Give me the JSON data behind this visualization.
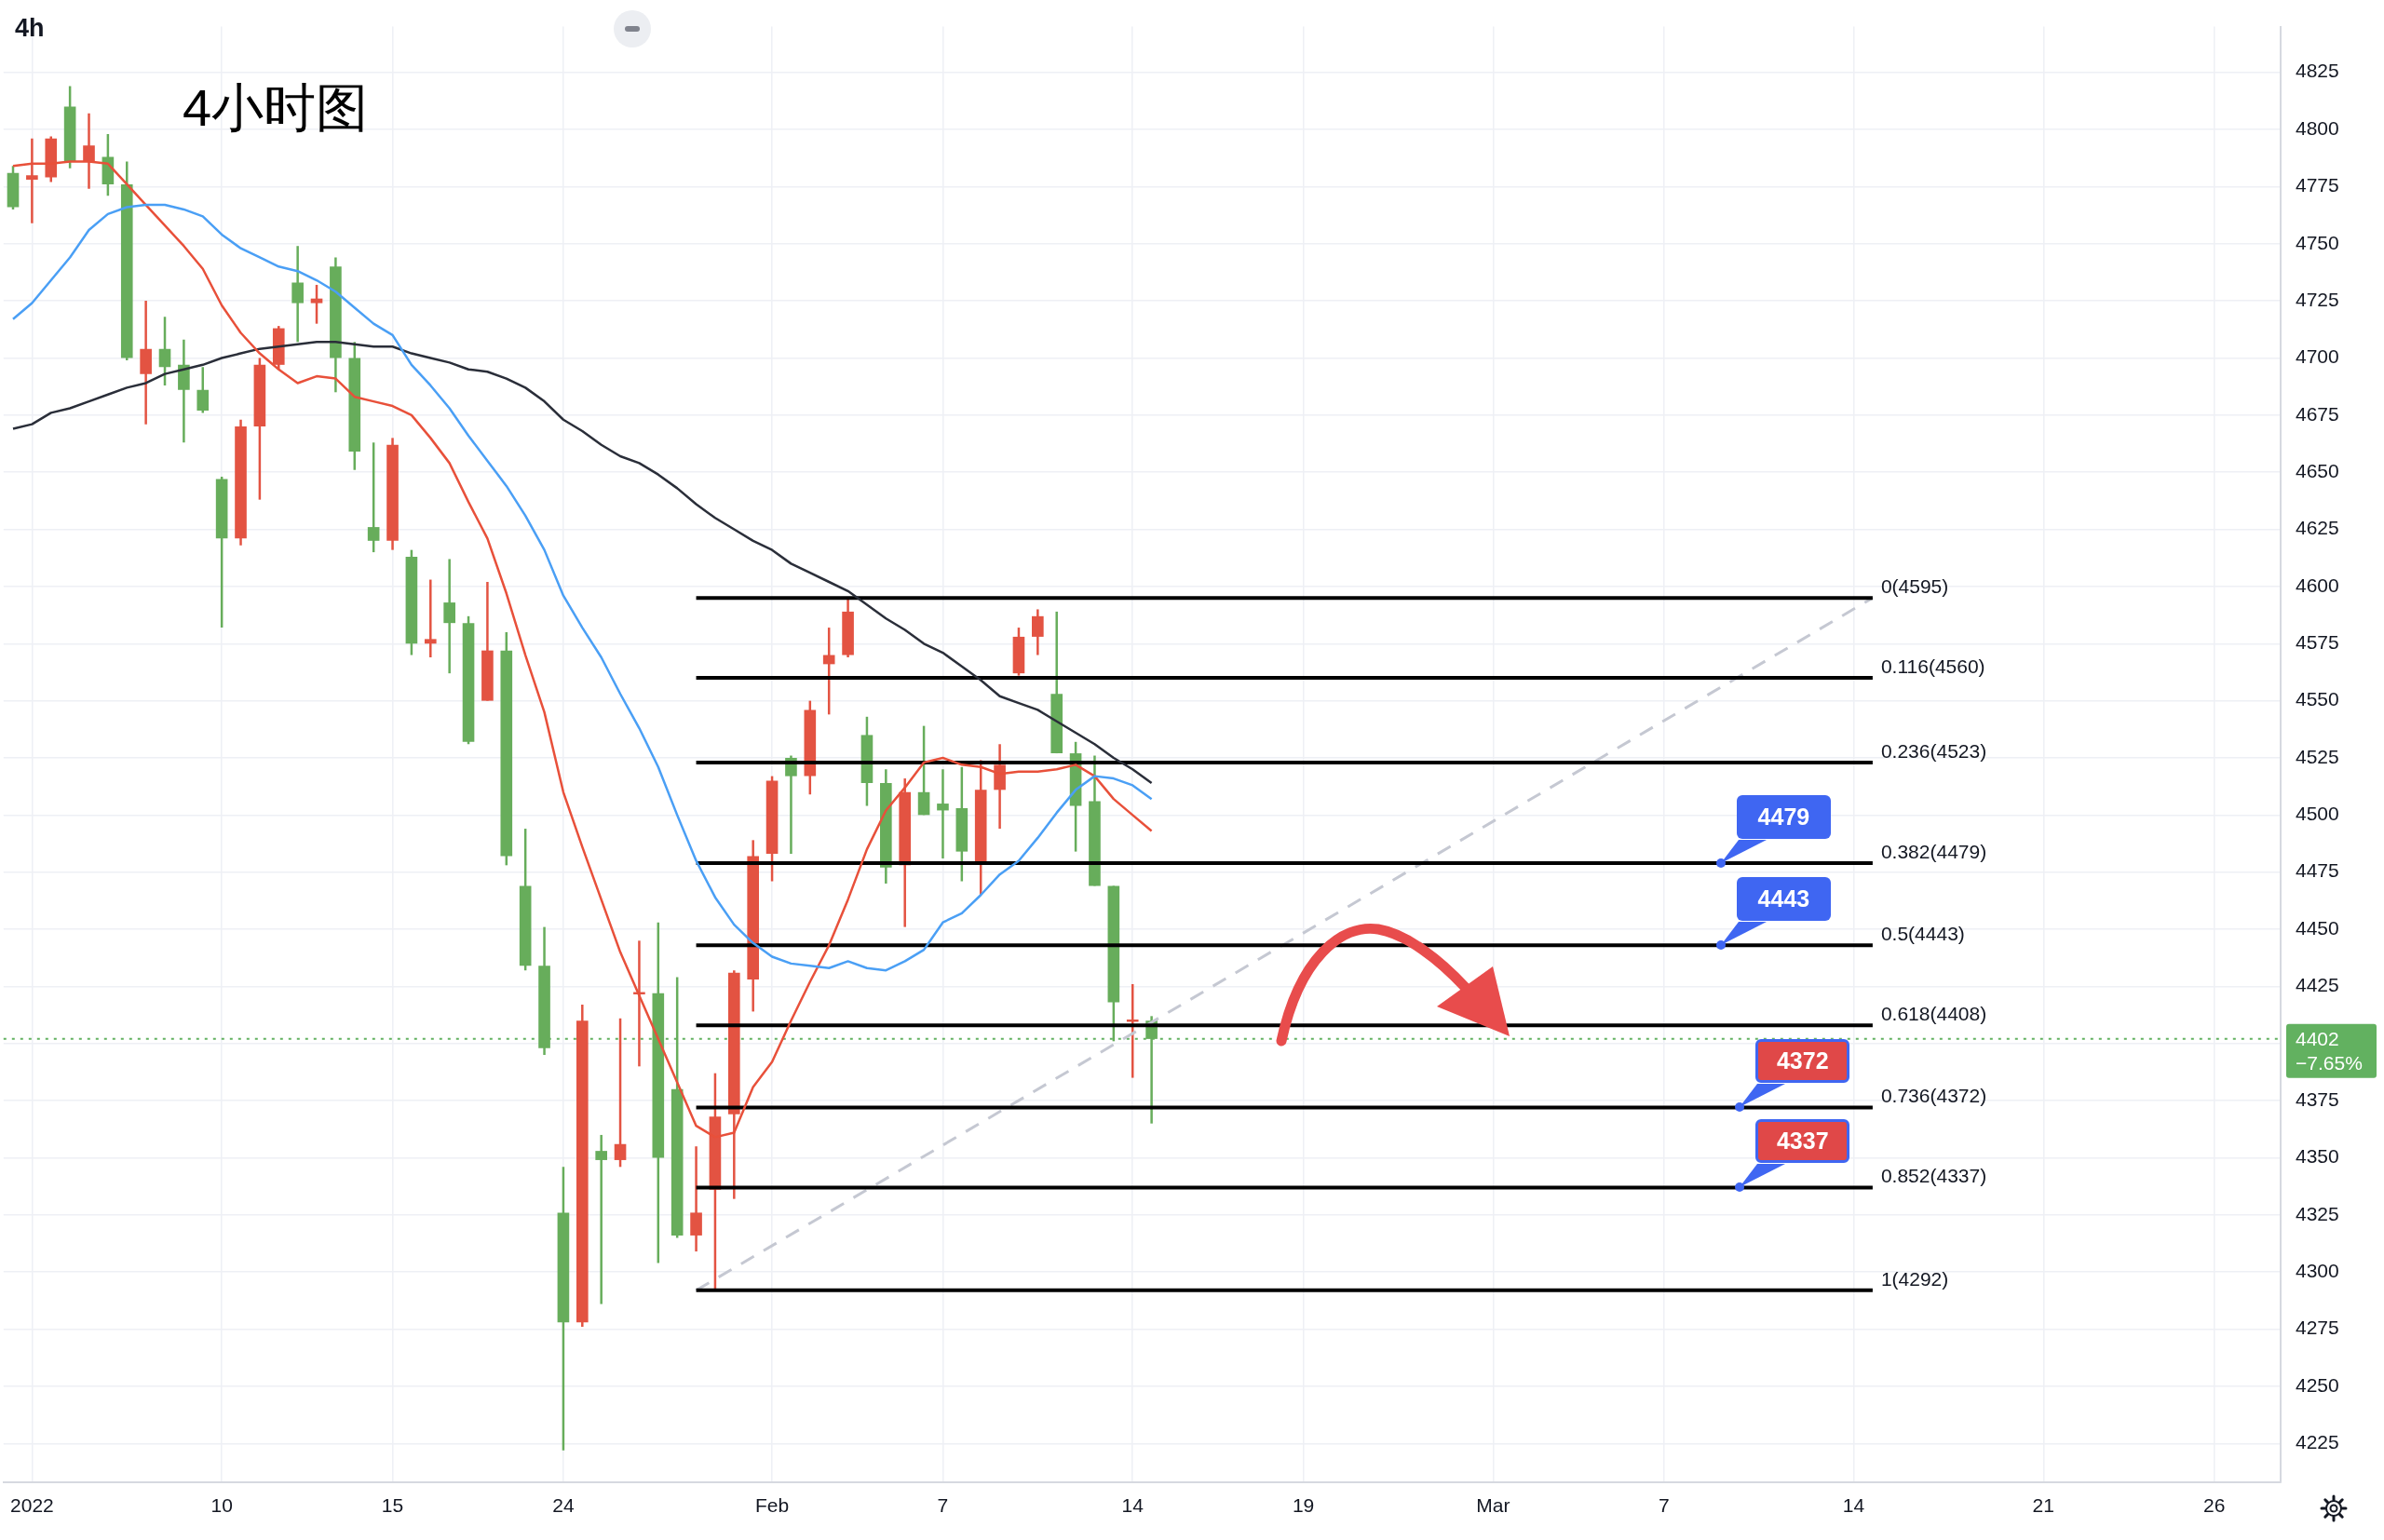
{
  "chart_data": {
    "type": "candlestick",
    "title": "4小时图",
    "subtitle": "4h",
    "categories": [
      null,
      "2022",
      null,
      null,
      null,
      null,
      null,
      null,
      null,
      null,
      null,
      "10",
      null,
      null,
      null,
      null,
      null,
      null,
      null,
      null,
      "15",
      null,
      null,
      null,
      null,
      null,
      null,
      null,
      null,
      "24",
      null,
      null,
      null,
      null,
      null,
      null,
      null,
      null,
      null,
      null,
      "Feb",
      null,
      null,
      null,
      null,
      null,
      null,
      null,
      null,
      "7",
      null,
      null,
      null,
      null,
      null,
      null,
      null,
      null,
      null,
      "14",
      null,
      null,
      null,
      null,
      null,
      null,
      null,
      null,
      "19",
      null,
      null,
      null,
      null,
      null,
      null,
      null,
      null,
      null,
      "Mar",
      null,
      null,
      null,
      null,
      null,
      null,
      null,
      null,
      "7",
      null,
      null,
      null,
      null,
      null,
      null,
      null,
      null,
      null,
      "14",
      null,
      null,
      null,
      null,
      null,
      null,
      null,
      null,
      null,
      "21",
      null,
      null,
      null,
      null,
      null,
      null,
      null,
      null,
      "26",
      null,
      null,
      null
    ],
    "ohlc": [
      [
        4781,
        4784,
        4765,
        4766
      ],
      [
        4778,
        4796,
        4759,
        4780
      ],
      [
        4779,
        4797,
        4777,
        4796
      ],
      [
        4810,
        4819,
        4783,
        4786
      ],
      [
        4786,
        4807,
        4774,
        4793
      ],
      [
        4788,
        4798,
        4771,
        4776
      ],
      [
        4776,
        4786,
        4699,
        4700
      ],
      [
        4693,
        4725,
        4671,
        4704
      ],
      [
        4704,
        4718,
        4688,
        4696
      ],
      [
        4697,
        4708,
        4663,
        4686
      ],
      [
        4686,
        4696,
        4676,
        4677
      ],
      [
        4647,
        4648,
        4582,
        4621
      ],
      [
        4621,
        4673,
        4618,
        4670
      ],
      [
        4670,
        4700,
        4638,
        4697
      ],
      [
        4697,
        4714,
        4695,
        4713
      ],
      [
        4733,
        4749,
        4707,
        4724
      ],
      [
        4724,
        4732,
        4715,
        4726
      ],
      [
        4740,
        4744,
        4685,
        4700
      ],
      [
        4700,
        4707,
        4651,
        4659
      ],
      [
        4626,
        4663,
        4615,
        4620
      ],
      [
        4620,
        4665,
        4616,
        4662
      ],
      [
        4613,
        4616,
        4570,
        4575
      ],
      [
        4575,
        4603,
        4569,
        4577
      ],
      [
        4593,
        4612,
        4562,
        4584
      ],
      [
        4584,
        4587,
        4531,
        4532
      ],
      [
        4550,
        4602,
        4550,
        4572
      ],
      [
        4572,
        4580,
        4478,
        4482
      ],
      [
        4469,
        4494,
        4432,
        4434
      ],
      [
        4434,
        4451,
        4395,
        4398
      ],
      [
        4326,
        4346,
        4222,
        4278
      ],
      [
        4278,
        4417,
        4276,
        4410
      ],
      [
        4353,
        4360,
        4286,
        4349
      ],
      [
        4349,
        4411,
        4346,
        4356
      ],
      [
        4421,
        4445,
        4390,
        4422
      ],
      [
        4422,
        4453,
        4304,
        4350
      ],
      [
        4380,
        4429,
        4315,
        4316
      ],
      [
        4316,
        4355,
        4309,
        4326
      ],
      [
        4336,
        4387,
        4292,
        4368
      ],
      [
        4369,
        4432,
        4332,
        4431
      ],
      [
        4428,
        4489,
        4414,
        4482
      ],
      [
        4483,
        4517,
        4471,
        4515
      ],
      [
        4525,
        4526,
        4483,
        4517
      ],
      [
        4517,
        4550,
        4509,
        4546
      ],
      [
        4566,
        4582,
        4544,
        4570
      ],
      [
        4570,
        4595,
        4569,
        4589
      ],
      [
        4535,
        4543,
        4504,
        4514
      ],
      [
        4514,
        4520,
        4470,
        4477
      ],
      [
        4478,
        4516,
        4451,
        4510
      ],
      [
        4510,
        4539,
        4500,
        4500
      ],
      [
        4505,
        4520,
        4481,
        4502
      ],
      [
        4503,
        4521,
        4471,
        4484
      ],
      [
        4479,
        4524,
        4465,
        4511
      ],
      [
        4511,
        4531,
        4494,
        4522
      ],
      [
        4562,
        4582,
        4561,
        4578
      ],
      [
        4578,
        4590,
        4570,
        4587
      ],
      [
        4553,
        4589,
        4527,
        4527
      ],
      [
        4527,
        4532,
        4484,
        4504
      ],
      [
        4506,
        4526,
        4469,
        4469
      ],
      [
        4469,
        4469,
        4401,
        4418
      ],
      [
        4409,
        4426,
        4385,
        4410
      ],
      [
        4410,
        4412,
        4365,
        4402
      ],
      null,
      null,
      null,
      null,
      null,
      null,
      null,
      null,
      null,
      null,
      null,
      null,
      null,
      null,
      null,
      null,
      null,
      null,
      null,
      null,
      null,
      null,
      null,
      null,
      null,
      null,
      null,
      null,
      null,
      null,
      null,
      null,
      null,
      null,
      null,
      null,
      null,
      null,
      null,
      null,
      null,
      null,
      null,
      null,
      null,
      null,
      null,
      null,
      null,
      null,
      null,
      null,
      null,
      null,
      null,
      null,
      null,
      null,
      null
    ],
    "colors": [
      "#67ad5b",
      "#e35342",
      "#e35342",
      "#67ad5b",
      "#e35342",
      "#67ad5b",
      "#67ad5b",
      "#e35342",
      "#67ad5b",
      "#67ad5b",
      "#67ad5b",
      "#67ad5b",
      "#e35342",
      "#e35342",
      "#e35342",
      "#67ad5b",
      "#e35342",
      "#67ad5b",
      "#67ad5b",
      "#67ad5b",
      "#e35342",
      "#67ad5b",
      "#e35342",
      "#67ad5b",
      "#67ad5b",
      "#e35342",
      "#67ad5b",
      "#67ad5b",
      "#67ad5b",
      "#67ad5b",
      "#e35342",
      "#67ad5b",
      "#e35342",
      "#e35342",
      "#67ad5b",
      "#67ad5b",
      "#e35342",
      "#e35342",
      "#e35342",
      "#e35342",
      "#e35342",
      "#67ad5b",
      "#e35342",
      "#e35342",
      "#e35342",
      "#67ad5b",
      "#67ad5b",
      "#e35342",
      "#67ad5b",
      "#67ad5b",
      "#67ad5b",
      "#e35342",
      "#e35342",
      "#e35342",
      "#e35342",
      "#67ad5b",
      "#67ad5b",
      "#67ad5b",
      "#67ad5b",
      "#e35342",
      "#67ad5b",
      null,
      null,
      null,
      null,
      null,
      null,
      null,
      null,
      null,
      null,
      null,
      null,
      null,
      null,
      null,
      null,
      null,
      null,
      null,
      null,
      null,
      null,
      null,
      null,
      null,
      null,
      null,
      null,
      null,
      null,
      null,
      null,
      null,
      null,
      null,
      null,
      null,
      null,
      null,
      null,
      null,
      null,
      null,
      null,
      null,
      null,
      null,
      null,
      null,
      null,
      null,
      null,
      null,
      null,
      null,
      null,
      null,
      null,
      null
    ],
    "series": [
      {
        "type": "line",
        "color": "#4a9ff5",
        "values": [
          4717,
          4724,
          4734,
          4744,
          4756,
          4763,
          4766,
          4767,
          4767,
          4765,
          4762,
          4754,
          4748,
          4744,
          4740,
          4738,
          4734,
          4729,
          4722,
          4715,
          4710,
          4697,
          4688,
          4678,
          4666,
          4655,
          4644,
          4631,
          4616,
          4596,
          4582,
          4569,
          4553,
          4538,
          4521,
          4500,
          4480,
          4464,
          4452,
          4444,
          4438,
          4435,
          4434,
          4433,
          4436,
          4433,
          4432,
          4436,
          4441,
          4453,
          4457,
          4465,
          4474,
          4480,
          4490,
          4501,
          4511,
          4517,
          4516,
          4513,
          4507,
          null,
          null,
          null,
          null,
          null,
          null,
          null,
          null,
          null,
          null,
          null,
          null,
          null,
          null,
          null,
          null,
          null,
          null,
          null,
          null,
          null,
          null,
          null,
          null,
          null,
          null,
          null,
          null,
          null,
          null,
          null,
          null,
          null,
          null,
          null,
          null,
          null,
          null,
          null,
          null,
          null,
          null,
          null,
          null,
          null,
          null,
          null,
          null,
          null,
          null,
          null,
          null,
          null,
          null,
          null,
          null,
          null,
          null,
          null
        ]
      },
      {
        "type": "line",
        "color": "#e8503a",
        "values": [
          4784,
          4785,
          4785,
          4786,
          4786,
          4785,
          4776,
          4767,
          4758,
          4749,
          4739,
          4723,
          4711,
          4702,
          4695,
          4689,
          4692,
          4691,
          4683,
          4681,
          4679,
          4675,
          4665,
          4654,
          4637,
          4621,
          4597,
          4570,
          4545,
          4510,
          4486,
          4463,
          4440,
          4421,
          4402,
          4383,
          4364,
          4359,
          4361,
          4381,
          4392,
          4410,
          4427,
          4443,
          4463,
          4485,
          4502,
          4512,
          4523,
          4525,
          4522,
          4521,
          4518,
          4519,
          4519,
          4520,
          4522,
          4517,
          4507,
          4500,
          4493,
          null,
          null,
          null,
          null,
          null,
          null,
          null,
          null,
          null,
          null,
          null,
          null,
          null,
          null,
          null,
          null,
          null,
          null,
          null,
          null,
          null,
          null,
          null,
          null,
          null,
          null,
          null,
          null,
          null,
          null,
          null,
          null,
          null,
          null,
          null,
          null,
          null,
          null,
          null,
          null,
          null,
          null,
          null,
          null,
          null,
          null,
          null,
          null,
          null,
          null,
          null,
          null,
          null,
          null,
          null,
          null,
          null,
          null,
          null
        ]
      },
      {
        "type": "line",
        "color": "#2a2e39",
        "values": [
          4669,
          4671,
          4676,
          4678,
          4681,
          4684,
          4687,
          4689,
          4693,
          4695,
          4697,
          4700,
          4702,
          4704,
          4705,
          4706,
          4707,
          4707,
          4706,
          4705,
          4705,
          4702,
          4700,
          4698,
          4695,
          4694,
          4691,
          4687,
          4681,
          4673,
          4668,
          4662,
          4657,
          4654,
          4649,
          4643,
          4636,
          4630,
          4625,
          4620,
          4616,
          4610,
          4606,
          4602,
          4598,
          4592,
          4586,
          4581,
          4575,
          4571,
          4565,
          4559,
          4552,
          4549,
          4546,
          4541,
          4536,
          4531,
          4525,
          4520,
          4514,
          null,
          null,
          null,
          null,
          null,
          null,
          null,
          null,
          null,
          null,
          null,
          null,
          null,
          null,
          null,
          null,
          null,
          null,
          null,
          null,
          null,
          null,
          null,
          null,
          null,
          null,
          null,
          null,
          null,
          null,
          null,
          null,
          null,
          null,
          null,
          null,
          null,
          null,
          null,
          null,
          null,
          null,
          null,
          null,
          null,
          null,
          null,
          null,
          null,
          null,
          null,
          null,
          null,
          null,
          null,
          null,
          null,
          null,
          null
        ]
      },
      {
        "type": "line",
        "name": "0(4595)",
        "color": "#000000",
        "values": [
          null,
          null,
          null,
          null,
          null,
          null,
          null,
          null,
          null,
          null,
          null,
          null,
          null,
          null,
          null,
          null,
          null,
          null,
          null,
          null,
          null,
          null,
          null,
          null,
          null,
          null,
          null,
          null,
          null,
          null,
          null,
          null,
          null,
          null,
          null,
          null,
          4595,
          null,
          null,
          null,
          null,
          null,
          null,
          null,
          null,
          null,
          null,
          null,
          null,
          null,
          null,
          null,
          null,
          null,
          null,
          null,
          null,
          null,
          null,
          null,
          null,
          null,
          null,
          null,
          null,
          null,
          null,
          null,
          null,
          null,
          null,
          null,
          null,
          null,
          null,
          null,
          null,
          null,
          null,
          null,
          null,
          null,
          null,
          null,
          null,
          null,
          null,
          null,
          null,
          null,
          null,
          null,
          null,
          null,
          null,
          null,
          null,
          null,
          4595,
          null,
          null,
          null,
          null,
          null,
          null,
          null,
          null,
          null,
          null,
          null,
          null,
          null,
          null,
          null,
          null,
          null,
          null,
          null,
          null,
          null
        ]
      },
      {
        "type": "line",
        "name": "0.116(4560)",
        "color": "#000000",
        "values": [
          null,
          null,
          null,
          null,
          null,
          null,
          null,
          null,
          null,
          null,
          null,
          null,
          null,
          null,
          null,
          null,
          null,
          null,
          null,
          null,
          null,
          null,
          null,
          null,
          null,
          null,
          null,
          null,
          null,
          null,
          null,
          null,
          null,
          null,
          null,
          null,
          4560,
          null,
          null,
          null,
          null,
          null,
          null,
          null,
          null,
          null,
          null,
          null,
          null,
          null,
          null,
          null,
          null,
          null,
          null,
          null,
          null,
          null,
          null,
          null,
          null,
          null,
          null,
          null,
          null,
          null,
          null,
          null,
          null,
          null,
          null,
          null,
          null,
          null,
          null,
          null,
          null,
          null,
          null,
          null,
          null,
          null,
          null,
          null,
          null,
          null,
          null,
          null,
          null,
          null,
          null,
          null,
          null,
          null,
          null,
          null,
          null,
          null,
          4560,
          null,
          null,
          null,
          null,
          null,
          null,
          null,
          null,
          null,
          null,
          null,
          null,
          null,
          null,
          null,
          null,
          null,
          null,
          null,
          null,
          null
        ]
      },
      {
        "type": "line",
        "name": "0.236(4523)",
        "color": "#000000",
        "values": [
          null,
          null,
          null,
          null,
          null,
          null,
          null,
          null,
          null,
          null,
          null,
          null,
          null,
          null,
          null,
          null,
          null,
          null,
          null,
          null,
          null,
          null,
          null,
          null,
          null,
          null,
          null,
          null,
          null,
          null,
          null,
          null,
          null,
          null,
          null,
          null,
          4523,
          null,
          null,
          null,
          null,
          null,
          null,
          null,
          null,
          null,
          null,
          null,
          null,
          null,
          null,
          null,
          null,
          null,
          null,
          null,
          null,
          null,
          null,
          null,
          null,
          null,
          null,
          null,
          null,
          null,
          null,
          null,
          null,
          null,
          null,
          null,
          null,
          null,
          null,
          null,
          null,
          null,
          null,
          null,
          null,
          null,
          null,
          null,
          null,
          null,
          null,
          null,
          null,
          null,
          null,
          null,
          null,
          null,
          null,
          null,
          null,
          null,
          4523,
          null,
          null,
          null,
          null,
          null,
          null,
          null,
          null,
          null,
          null,
          null,
          null,
          null,
          null,
          null,
          null,
          null,
          null,
          null,
          null,
          null
        ]
      },
      {
        "type": "line",
        "name": "0.382(4479)",
        "color": "#000000",
        "values": [
          null,
          null,
          null,
          null,
          null,
          null,
          null,
          null,
          null,
          null,
          null,
          null,
          null,
          null,
          null,
          null,
          null,
          null,
          null,
          null,
          null,
          null,
          null,
          null,
          null,
          null,
          null,
          null,
          null,
          null,
          null,
          null,
          null,
          null,
          null,
          null,
          4479,
          null,
          null,
          null,
          null,
          null,
          null,
          null,
          null,
          null,
          null,
          null,
          null,
          null,
          null,
          null,
          null,
          null,
          null,
          null,
          null,
          null,
          null,
          null,
          null,
          null,
          null,
          null,
          null,
          null,
          null,
          null,
          null,
          null,
          null,
          null,
          null,
          null,
          null,
          null,
          null,
          null,
          null,
          null,
          null,
          null,
          null,
          null,
          null,
          null,
          null,
          null,
          null,
          null,
          null,
          null,
          null,
          null,
          null,
          null,
          null,
          null,
          4479,
          null,
          null,
          null,
          null,
          null,
          null,
          null,
          null,
          null,
          null,
          null,
          null,
          null,
          null,
          null,
          null,
          null,
          null,
          null,
          null,
          null
        ]
      },
      {
        "type": "line",
        "name": "0.5(4443)",
        "color": "#000000",
        "values": [
          null,
          null,
          null,
          null,
          null,
          null,
          null,
          null,
          null,
          null,
          null,
          null,
          null,
          null,
          null,
          null,
          null,
          null,
          null,
          null,
          null,
          null,
          null,
          null,
          null,
          null,
          null,
          null,
          null,
          null,
          null,
          null,
          null,
          null,
          null,
          null,
          4443,
          null,
          null,
          null,
          null,
          null,
          null,
          null,
          null,
          null,
          null,
          null,
          null,
          null,
          null,
          null,
          null,
          null,
          null,
          null,
          null,
          null,
          null,
          null,
          null,
          null,
          null,
          null,
          null,
          null,
          null,
          null,
          null,
          null,
          null,
          null,
          null,
          null,
          null,
          null,
          null,
          null,
          null,
          null,
          null,
          null,
          null,
          null,
          null,
          null,
          null,
          null,
          null,
          null,
          null,
          null,
          null,
          null,
          null,
          null,
          null,
          null,
          4443,
          null,
          null,
          null,
          null,
          null,
          null,
          null,
          null,
          null,
          null,
          null,
          null,
          null,
          null,
          null,
          null,
          null,
          null,
          null,
          null,
          null
        ]
      },
      {
        "type": "line",
        "name": "0.618(4408)",
        "color": "#000000",
        "values": [
          null,
          null,
          null,
          null,
          null,
          null,
          null,
          null,
          null,
          null,
          null,
          null,
          null,
          null,
          null,
          null,
          null,
          null,
          null,
          null,
          null,
          null,
          null,
          null,
          null,
          null,
          null,
          null,
          null,
          null,
          null,
          null,
          null,
          null,
          null,
          null,
          4408,
          null,
          null,
          null,
          null,
          null,
          null,
          null,
          null,
          null,
          null,
          null,
          null,
          null,
          null,
          null,
          null,
          null,
          null,
          null,
          null,
          null,
          null,
          null,
          null,
          null,
          null,
          null,
          null,
          null,
          null,
          null,
          null,
          null,
          null,
          null,
          null,
          null,
          null,
          null,
          null,
          null,
          null,
          null,
          null,
          null,
          null,
          null,
          null,
          null,
          null,
          null,
          null,
          null,
          null,
          null,
          null,
          null,
          null,
          null,
          null,
          null,
          4408,
          null,
          null,
          null,
          null,
          null,
          null,
          null,
          null,
          null,
          null,
          null,
          null,
          null,
          null,
          null,
          null,
          null,
          null,
          null,
          null,
          null
        ]
      },
      {
        "type": "line",
        "name": "0.736(4372)",
        "color": "#000000",
        "values": [
          null,
          null,
          null,
          null,
          null,
          null,
          null,
          null,
          null,
          null,
          null,
          null,
          null,
          null,
          null,
          null,
          null,
          null,
          null,
          null,
          null,
          null,
          null,
          null,
          null,
          null,
          null,
          null,
          null,
          null,
          null,
          null,
          null,
          null,
          null,
          null,
          4372,
          null,
          null,
          null,
          null,
          null,
          null,
          null,
          null,
          null,
          null,
          null,
          null,
          null,
          null,
          null,
          null,
          null,
          null,
          null,
          null,
          null,
          null,
          null,
          null,
          null,
          null,
          null,
          null,
          null,
          null,
          null,
          null,
          null,
          null,
          null,
          null,
          null,
          null,
          null,
          null,
          null,
          null,
          null,
          null,
          null,
          null,
          null,
          null,
          null,
          null,
          null,
          null,
          null,
          null,
          null,
          null,
          null,
          null,
          null,
          null,
          null,
          4372,
          null,
          null,
          null,
          null,
          null,
          null,
          null,
          null,
          null,
          null,
          null,
          null,
          null,
          null,
          null,
          null,
          null,
          null,
          null,
          null,
          null
        ]
      },
      {
        "type": "line",
        "name": "0.852(4337)",
        "color": "#000000",
        "values": [
          null,
          null,
          null,
          null,
          null,
          null,
          null,
          null,
          null,
          null,
          null,
          null,
          null,
          null,
          null,
          null,
          null,
          null,
          null,
          null,
          null,
          null,
          null,
          null,
          null,
          null,
          null,
          null,
          null,
          null,
          null,
          null,
          null,
          null,
          null,
          null,
          4337,
          null,
          null,
          null,
          null,
          null,
          null,
          null,
          null,
          null,
          null,
          null,
          null,
          null,
          null,
          null,
          null,
          null,
          null,
          null,
          null,
          null,
          null,
          null,
          null,
          null,
          null,
          null,
          null,
          null,
          null,
          null,
          null,
          null,
          null,
          null,
          null,
          null,
          null,
          null,
          null,
          null,
          null,
          null,
          null,
          null,
          null,
          null,
          null,
          null,
          null,
          null,
          null,
          null,
          null,
          null,
          null,
          null,
          null,
          null,
          null,
          null,
          4337,
          null,
          null,
          null,
          null,
          null,
          null,
          null,
          null,
          null,
          null,
          null,
          null,
          null,
          null,
          null,
          null,
          null,
          null,
          null,
          null,
          null
        ]
      },
      {
        "type": "line",
        "name": "1(4292)",
        "color": "#000000",
        "values": [
          null,
          null,
          null,
          null,
          null,
          null,
          null,
          null,
          null,
          null,
          null,
          null,
          null,
          null,
          null,
          null,
          null,
          null,
          null,
          null,
          null,
          null,
          null,
          null,
          null,
          null,
          null,
          null,
          null,
          null,
          null,
          null,
          null,
          null,
          null,
          null,
          4292,
          null,
          null,
          null,
          null,
          null,
          null,
          null,
          null,
          null,
          null,
          null,
          null,
          null,
          null,
          null,
          null,
          null,
          null,
          null,
          null,
          null,
          null,
          null,
          null,
          null,
          null,
          null,
          null,
          null,
          null,
          null,
          null,
          null,
          null,
          null,
          null,
          null,
          null,
          null,
          null,
          null,
          null,
          null,
          null,
          null,
          null,
          null,
          null,
          null,
          null,
          null,
          null,
          null,
          null,
          null,
          null,
          null,
          null,
          null,
          null,
          null,
          4292,
          null,
          null,
          null,
          null,
          null,
          null,
          null,
          null,
          null,
          null,
          null,
          null,
          null,
          null,
          null,
          null,
          null,
          null,
          null,
          null,
          null
        ]
      },
      {
        "type": "line",
        "color": "#c5c8d2",
        "line_style": "dashed",
        "values": [
          null,
          null,
          null,
          null,
          null,
          null,
          null,
          null,
          null,
          null,
          null,
          null,
          null,
          null,
          null,
          null,
          null,
          null,
          null,
          null,
          null,
          null,
          null,
          null,
          null,
          null,
          null,
          null,
          null,
          null,
          null,
          null,
          null,
          null,
          null,
          null,
          4292,
          null,
          null,
          null,
          null,
          null,
          null,
          null,
          null,
          null,
          null,
          null,
          null,
          null,
          null,
          null,
          null,
          null,
          null,
          null,
          null,
          null,
          null,
          null,
          null,
          null,
          null,
          null,
          null,
          null,
          null,
          null,
          null,
          null,
          null,
          null,
          null,
          null,
          null,
          null,
          null,
          null,
          null,
          null,
          null,
          null,
          null,
          null,
          null,
          null,
          null,
          null,
          null,
          null,
          null,
          null,
          null,
          null,
          null,
          null,
          null,
          null,
          4595,
          null,
          null,
          null,
          null,
          null,
          null,
          null,
          null,
          null,
          null,
          null,
          null,
          null,
          null,
          null,
          null,
          null,
          null,
          null,
          null,
          null
        ]
      }
    ],
    "ylim": [
      4208,
      4845
    ],
    "yticks": [
      4225,
      4250,
      4275,
      4300,
      4325,
      4350,
      4375,
      {
        "value": 4400,
        "label": null
      },
      4425,
      4450,
      4475,
      4500,
      4525,
      4550,
      4575,
      4600,
      4625,
      4650,
      4675,
      4700,
      4725,
      4750,
      4775,
      4800,
      4825
    ],
    "grid": true,
    "marker": "none",
    "ref_lines": [
      {
        "axis": "y",
        "value": 4402,
        "label": "4402",
        "color": "#62b160",
        "line_style": "dotted"
      }
    ],
    "annotations": [
      "−7.65%",
      {
        "text": "4479",
        "y": 4479
      },
      {
        "text": "4443",
        "y": 4443
      },
      {
        "text": "4372",
        "y": 4372
      },
      {
        "text": "4337",
        "y": 4337
      }
    ]
  }
}
